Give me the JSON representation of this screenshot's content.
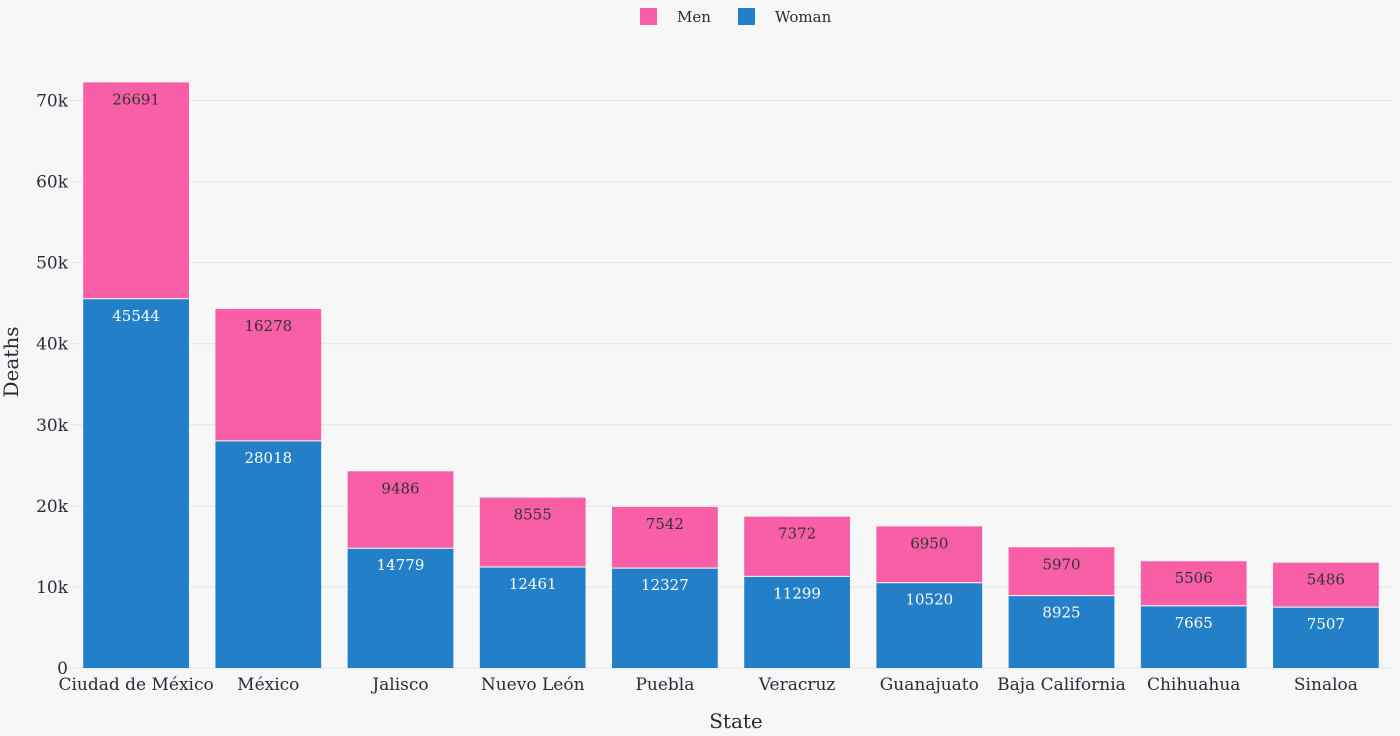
{
  "chart_data": {
    "type": "bar",
    "stacked": true,
    "categories": [
      "Ciudad de México",
      "México",
      "Jalisco",
      "Nuevo León",
      "Puebla",
      "Veracruz",
      "Guanajuato",
      "Baja California",
      "Chihuahua",
      "Sinaloa"
    ],
    "series": [
      {
        "name": "Woman",
        "color": "#2380c8",
        "values": [
          45544,
          28018,
          14779,
          12461,
          12327,
          11299,
          10520,
          8925,
          7665,
          7507
        ]
      },
      {
        "name": "Men",
        "color": "#f95fa7",
        "values": [
          26691,
          16278,
          9486,
          8555,
          7542,
          7372,
          6950,
          5970,
          5506,
          5486
        ]
      }
    ],
    "legend_order": [
      "Men",
      "Woman"
    ],
    "legend_position": "top-center",
    "xlabel": "State",
    "ylabel": "Deaths",
    "ylim": [
      0,
      75000
    ],
    "yticks": [
      0,
      10000,
      20000,
      30000,
      40000,
      50000,
      60000,
      70000
    ],
    "ytick_labels": [
      "0",
      "10k",
      "20k",
      "30k",
      "40k",
      "50k",
      "60k",
      "70k"
    ],
    "grid": true
  }
}
